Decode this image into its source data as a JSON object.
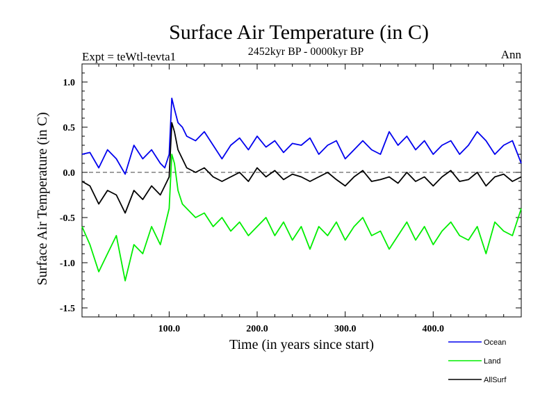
{
  "chart_data": {
    "type": "line",
    "title": "Surface Air Temperature (in C)",
    "subtitle": "2452kyr BP - 0000kyr BP",
    "experiment_label": "Expt = teWtl-tevta1",
    "period_label": "Ann",
    "xlabel": "Time (in years since start)",
    "ylabel": "Surface Air Temperature (in C)",
    "xlim": [
      1,
      500
    ],
    "ylim": [
      -1.6,
      1.2
    ],
    "x_ticks": [
      100,
      200,
      300,
      400
    ],
    "x_tick_labels": [
      "100.0",
      "200.0",
      "300.0",
      "400.0"
    ],
    "y_ticks": [
      -1.5,
      -1.0,
      -0.5,
      0.0,
      0.5,
      1.0
    ],
    "y_tick_labels": [
      "-1.5",
      "-1.0",
      "-0.5",
      "0.0",
      "0.5",
      "1.0"
    ],
    "zero_line": true,
    "x": [
      1,
      10,
      20,
      30,
      40,
      50,
      60,
      70,
      80,
      90,
      95,
      100,
      103,
      106,
      110,
      115,
      120,
      130,
      140,
      150,
      160,
      170,
      180,
      190,
      200,
      210,
      220,
      230,
      240,
      250,
      260,
      270,
      280,
      290,
      300,
      310,
      320,
      330,
      340,
      350,
      360,
      370,
      380,
      390,
      400,
      410,
      420,
      430,
      440,
      450,
      460,
      470,
      480,
      490,
      500
    ],
    "series": [
      {
        "name": "Ocean",
        "color": "#0000ee",
        "values": [
          0.2,
          0.22,
          0.05,
          0.25,
          0.15,
          -0.02,
          0.3,
          0.15,
          0.25,
          0.1,
          0.05,
          0.2,
          0.82,
          0.7,
          0.55,
          0.5,
          0.4,
          0.35,
          0.45,
          0.3,
          0.15,
          0.3,
          0.38,
          0.25,
          0.4,
          0.28,
          0.35,
          0.22,
          0.32,
          0.3,
          0.38,
          0.2,
          0.3,
          0.35,
          0.15,
          0.25,
          0.35,
          0.25,
          0.2,
          0.45,
          0.3,
          0.4,
          0.25,
          0.35,
          0.2,
          0.3,
          0.35,
          0.2,
          0.3,
          0.45,
          0.35,
          0.2,
          0.3,
          0.35,
          0.1
        ]
      },
      {
        "name": "Land",
        "color": "#00ee00",
        "values": [
          -0.6,
          -0.8,
          -1.1,
          -0.9,
          -0.7,
          -1.2,
          -0.8,
          -0.9,
          -0.6,
          -0.8,
          -0.6,
          -0.4,
          0.2,
          0.1,
          -0.2,
          -0.35,
          -0.4,
          -0.5,
          -0.45,
          -0.6,
          -0.5,
          -0.65,
          -0.55,
          -0.7,
          -0.6,
          -0.5,
          -0.7,
          -0.55,
          -0.75,
          -0.6,
          -0.85,
          -0.6,
          -0.7,
          -0.55,
          -0.75,
          -0.6,
          -0.5,
          -0.7,
          -0.65,
          -0.85,
          -0.7,
          -0.55,
          -0.75,
          -0.6,
          -0.8,
          -0.65,
          -0.55,
          -0.7,
          -0.75,
          -0.6,
          -0.9,
          -0.55,
          -0.65,
          -0.7,
          -0.4
        ]
      },
      {
        "name": "AllSurf",
        "color": "#000000",
        "values": [
          -0.1,
          -0.15,
          -0.35,
          -0.2,
          -0.25,
          -0.45,
          -0.2,
          -0.3,
          -0.15,
          -0.25,
          -0.15,
          -0.05,
          0.55,
          0.45,
          0.25,
          0.15,
          0.05,
          0.0,
          0.05,
          -0.05,
          -0.1,
          -0.05,
          0.0,
          -0.1,
          0.05,
          -0.05,
          0.02,
          -0.08,
          -0.02,
          -0.05,
          -0.1,
          -0.05,
          0.0,
          -0.08,
          -0.15,
          -0.05,
          0.02,
          -0.1,
          -0.08,
          -0.05,
          -0.12,
          0.0,
          -0.1,
          -0.05,
          -0.15,
          -0.05,
          0.02,
          -0.1,
          -0.08,
          0.0,
          -0.15,
          -0.05,
          -0.02,
          -0.1,
          -0.05
        ]
      }
    ]
  }
}
